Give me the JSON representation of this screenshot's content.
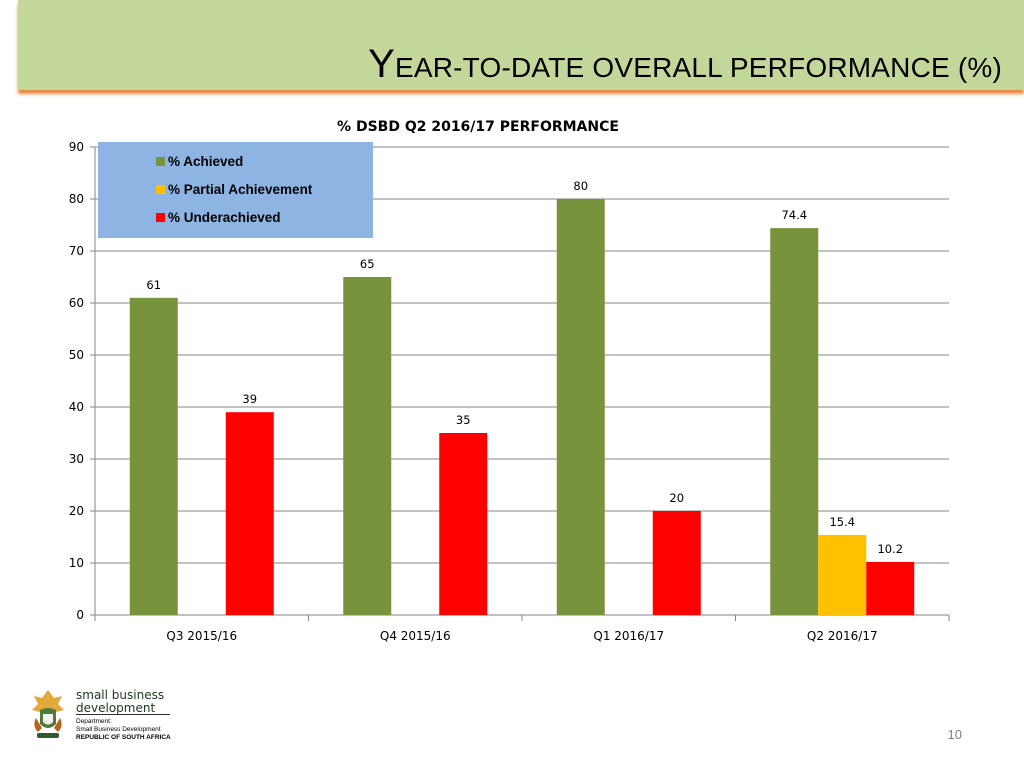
{
  "slide": {
    "title_first": "Y",
    "title_rest": "EAR-TO-DATE OVERALL PERFORMANCE (%)",
    "page_number": "10"
  },
  "footer": {
    "brand_line1": "small business",
    "brand_line2": "development",
    "department_label": "Department:",
    "department_name": "Small Business Development",
    "country": "REPUBLIC OF SOUTH AFRICA"
  },
  "colors": {
    "header_band": "#c4d79b",
    "header_shadow": "#e8893f",
    "legend_bg": "#8db4e2",
    "achieved": "#77933c",
    "partial": "#ffc000",
    "under": "#ff0000"
  },
  "chart_data": {
    "type": "bar",
    "title": "% DSBD Q2 2016/17 PERFORMANCE",
    "categories": [
      "Q3 2015/16",
      "Q4 2015/16",
      "Q1 2016/17",
      "Q2 2016/17"
    ],
    "series": [
      {
        "name": "% Achieved",
        "color": "#77933c",
        "values": [
          61,
          65,
          80,
          74.4
        ]
      },
      {
        "name": "% Partial Achievement",
        "color": "#ffc000",
        "values": [
          null,
          null,
          null,
          15.4
        ]
      },
      {
        "name": "% Underachieved",
        "color": "#ff0000",
        "values": [
          39,
          35,
          20,
          10.2
        ]
      }
    ],
    "ylim": [
      0,
      90
    ],
    "yticks": [
      0,
      10,
      20,
      30,
      40,
      50,
      60,
      70,
      80,
      90
    ],
    "grid": true,
    "legend_position": "top-left",
    "xlabel": "",
    "ylabel": ""
  }
}
